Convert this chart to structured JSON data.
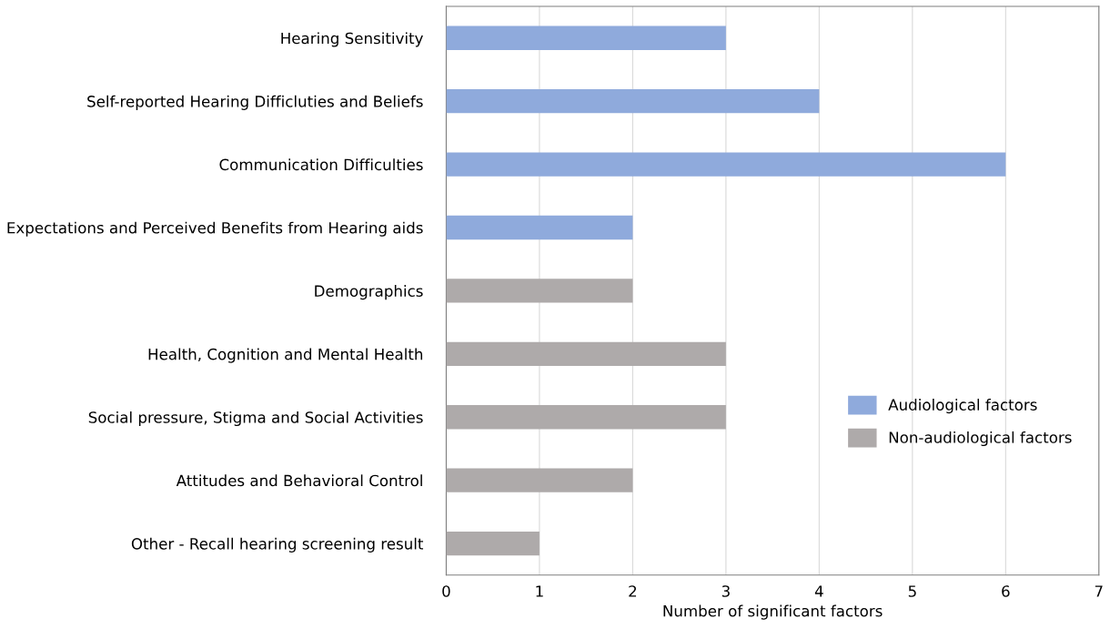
{
  "chart_data": {
    "type": "bar",
    "orientation": "horizontal",
    "xlabel": "Number of significant factors",
    "categories": [
      "Hearing Sensitivity",
      "Self-reported Hearing Difficluties and Beliefs",
      "Communication Difficulties",
      "Expectations and Perceived Benefits from Hearing aids",
      "Demographics",
      "Health, Cognition and Mental Health",
      "Social pressure, Stigma and Social Activities",
      "Attitudes and Behavioral Control",
      "Other - Recall hearing screening result"
    ],
    "series": [
      {
        "name": "Audiological factors",
        "color": "#8faadc",
        "values": [
          3,
          4,
          6,
          2,
          null,
          null,
          null,
          null,
          null
        ]
      },
      {
        "name": "Non-audiological factors",
        "color": "#aeaaaa",
        "values": [
          null,
          null,
          null,
          null,
          2,
          3,
          3,
          2,
          1
        ]
      }
    ],
    "xlim": [
      0,
      7
    ],
    "xticks": [
      0,
      1,
      2,
      3,
      4,
      5,
      6,
      7
    ],
    "grid": "x",
    "legend": "right"
  }
}
